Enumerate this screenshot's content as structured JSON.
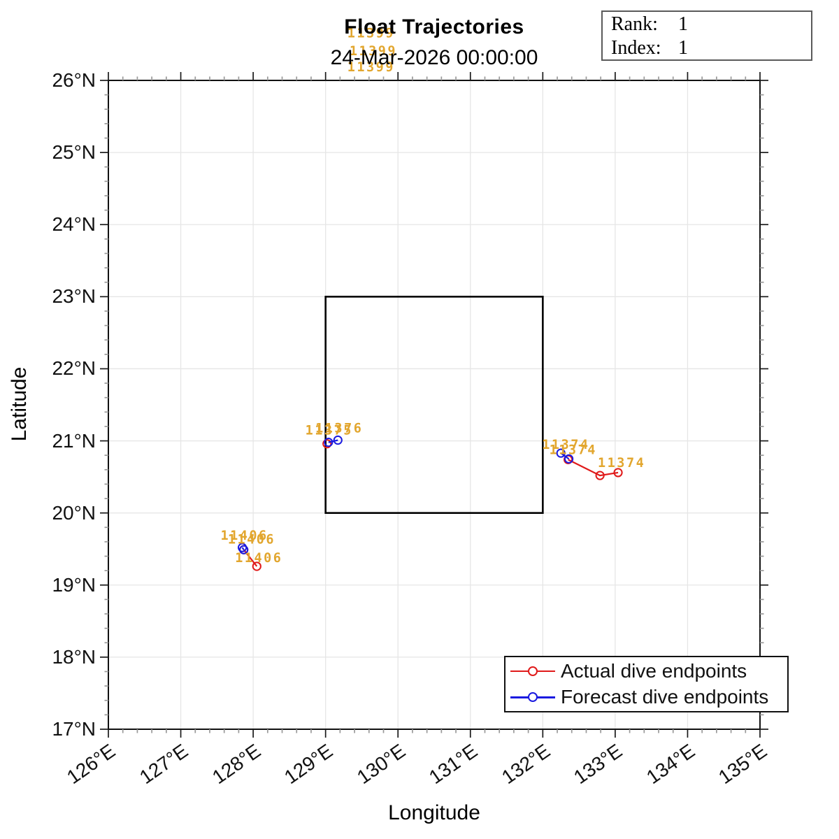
{
  "info_box": {
    "rank_label": "Rank:",
    "rank_value": "1",
    "index_label": "Index:",
    "index_value": "1"
  },
  "chart_data": {
    "type": "line",
    "title": "Float Trajectories",
    "subtitle": "24-Mar-2026 00:00:00",
    "xlabel": "Longitude",
    "ylabel": "Latitude",
    "xlim": [
      126,
      135
    ],
    "ylim": [
      17,
      26
    ],
    "x_minor_step": 0.2,
    "y_minor_step": 0.2,
    "grid": true,
    "x_tick_labels": [
      "126°E",
      "127°E",
      "128°E",
      "129°E",
      "130°E",
      "131°E",
      "132°E",
      "133°E",
      "134°E",
      "135°E"
    ],
    "y_tick_labels": [
      "17°N",
      "18°N",
      "19°N",
      "20°N",
      "21°N",
      "22°N",
      "23°N",
      "24°N",
      "25°N",
      "26°N"
    ],
    "region_box": {
      "lon_min": 129,
      "lon_max": 132,
      "lat_min": 20,
      "lat_max": 23
    },
    "legend": {
      "position": "lower-right",
      "items": [
        {
          "label": "Actual dive endpoints",
          "color": "#e01a1a",
          "marker": "circle"
        },
        {
          "label": "Forecast dive endpoints",
          "color": "#1a1ae0",
          "marker": "circle"
        }
      ]
    },
    "label_color": "#e2a62e",
    "floats": [
      {
        "id": "11399",
        "actual_points": [],
        "forecast_points": [],
        "label_positions": [
          [
            129.3,
            26.66
          ],
          [
            129.33,
            26.41
          ],
          [
            129.3,
            26.19
          ]
        ]
      },
      {
        "id": "11375",
        "actual_points": [
          [
            129.02,
            20.96
          ]
        ],
        "forecast_points": [],
        "label_positions": [
          [
            128.72,
            21.15
          ]
        ]
      },
      {
        "id": "11376",
        "actual_points": [],
        "forecast_points": [
          [
            129.04,
            20.98
          ],
          [
            129.17,
            21.01
          ]
        ],
        "label_positions": [
          [
            128.86,
            21.18
          ]
        ]
      },
      {
        "id": "11374",
        "actual_points": [
          [
            132.35,
            20.74
          ],
          [
            132.79,
            20.52
          ],
          [
            133.04,
            20.56
          ]
        ],
        "forecast_points": [
          [
            132.25,
            20.83
          ],
          [
            132.36,
            20.75
          ]
        ],
        "label_positions": [
          [
            131.99,
            20.95
          ],
          [
            132.09,
            20.88
          ],
          [
            132.76,
            20.7
          ]
        ]
      },
      {
        "id": "11406",
        "actual_points": [
          [
            127.87,
            19.49
          ],
          [
            128.05,
            19.26
          ]
        ],
        "forecast_points": [
          [
            127.85,
            19.52
          ],
          [
            127.87,
            19.49
          ]
        ],
        "label_positions": [
          [
            127.55,
            19.69
          ],
          [
            127.65,
            19.64
          ],
          [
            127.75,
            19.38
          ]
        ]
      }
    ]
  }
}
